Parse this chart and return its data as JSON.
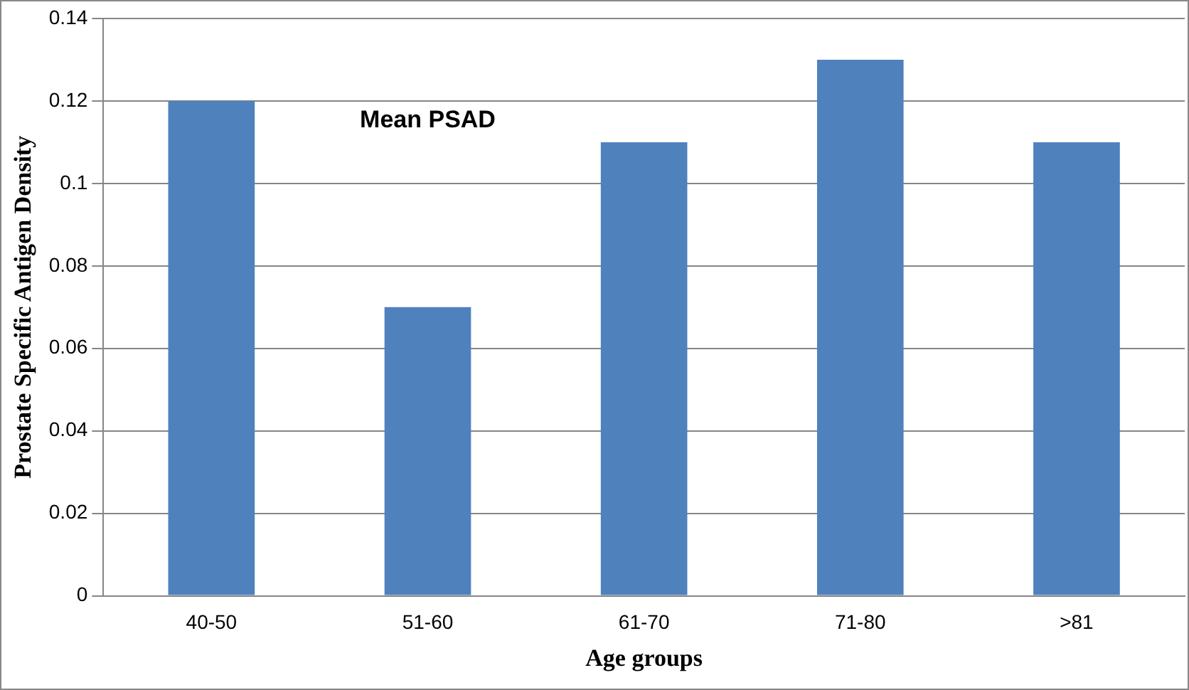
{
  "chart_data": {
    "type": "bar",
    "title": "Mean PSAD",
    "xlabel": "Age groups",
    "ylabel": "Prostate Specific Antigen Density",
    "categories": [
      "40-50",
      "51-60",
      "61-70",
      "71-80",
      ">81"
    ],
    "values": [
      0.12,
      0.07,
      0.11,
      0.13,
      0.11
    ],
    "color": "#4f81bd",
    "ylim": [
      0,
      0.14
    ],
    "yticks": [
      0,
      0.02,
      0.04,
      0.06,
      0.08,
      0.1,
      0.12,
      0.14
    ],
    "grid": "y",
    "legend": false
  }
}
